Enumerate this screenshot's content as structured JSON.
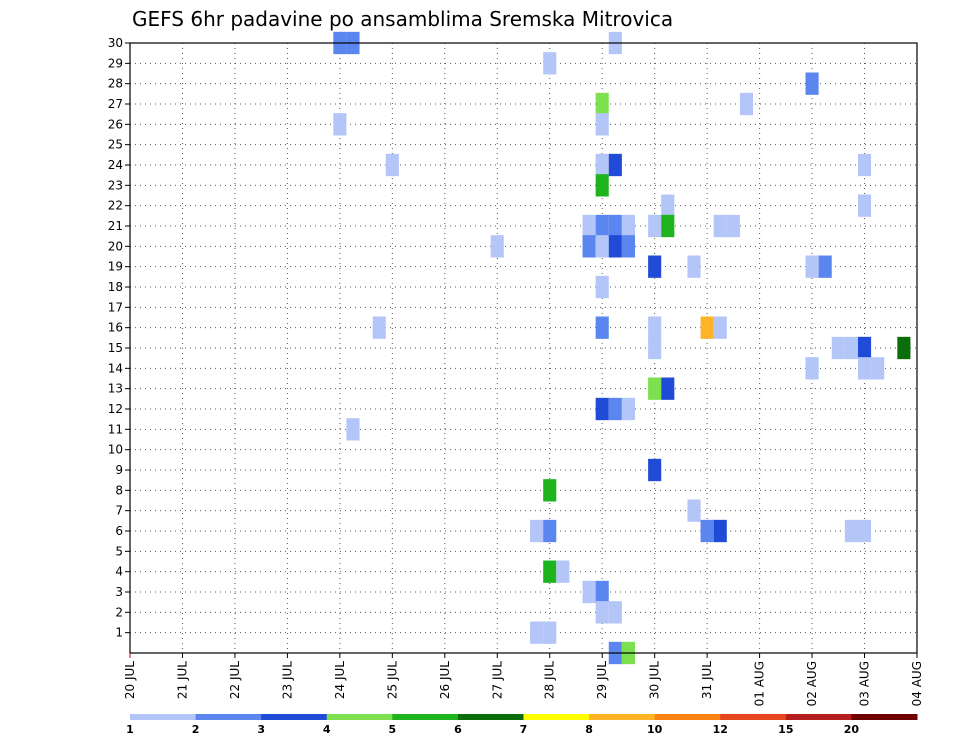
{
  "chart_data": {
    "type": "heatmap",
    "title": "GEFS 6hr padavine po ansamblima Sremska Mitrovica",
    "xlabel": "",
    "ylabel": "",
    "x_tick_labels": [
      "20 JUL",
      "21 JUL",
      "22 JUL",
      "23 JUL",
      "24 JUL",
      "25 JUL",
      "26 JUL",
      "27 JUL",
      "28 JUL",
      "29 JUL",
      "30 JUL",
      "31 JUL",
      "01 AUG",
      "02 AUG",
      "03 AUG",
      "04 AUG"
    ],
    "x_unit": "6-hour step (day index from 20 JUL)",
    "xlim": [
      0,
      15
    ],
    "y_tick_labels": [
      "1",
      "2",
      "3",
      "4",
      "5",
      "6",
      "7",
      "8",
      "9",
      "10",
      "11",
      "12",
      "13",
      "14",
      "15",
      "16",
      "17",
      "18",
      "19",
      "20",
      "21",
      "22",
      "23",
      "24",
      "25",
      "26",
      "27",
      "28",
      "29",
      "30"
    ],
    "ylim": [
      0,
      30
    ],
    "grid": true,
    "legend": {
      "placement": "bottom",
      "boundaries": [
        "1",
        "2",
        "3",
        "4",
        "5",
        "6",
        "7",
        "8",
        "10",
        "12",
        "15",
        "20"
      ],
      "colors": [
        "#b4c6f7",
        "#5b86f0",
        "#1f4bd6",
        "#7de04f",
        "#1eb41e",
        "#0a6e0a",
        "#ffff00",
        "#ffb428",
        "#ff8214",
        "#e6461e",
        "#b41e1e",
        "#6e0000"
      ]
    },
    "cells_columns": [
      "day",
      "member",
      "class"
    ],
    "cells": [
      [
        4.0,
        30,
        2
      ],
      [
        4.25,
        30,
        2
      ],
      [
        9.25,
        30,
        1
      ],
      [
        8.0,
        29,
        1
      ],
      [
        13.0,
        28,
        2
      ],
      [
        9.0,
        27,
        4
      ],
      [
        11.75,
        27,
        1
      ],
      [
        4.0,
        26,
        1
      ],
      [
        9.0,
        26,
        1
      ],
      [
        5.0,
        24,
        1
      ],
      [
        9.0,
        24,
        1
      ],
      [
        9.25,
        24,
        3
      ],
      [
        14.0,
        24,
        1
      ],
      [
        9.0,
        23,
        5
      ],
      [
        10.25,
        22,
        1
      ],
      [
        14.0,
        22,
        1
      ],
      [
        8.75,
        21,
        1
      ],
      [
        9.0,
        21,
        2
      ],
      [
        9.25,
        21,
        2
      ],
      [
        9.5,
        21,
        1
      ],
      [
        10.0,
        21,
        1
      ],
      [
        10.25,
        21,
        5
      ],
      [
        11.25,
        21,
        1
      ],
      [
        11.5,
        21,
        1
      ],
      [
        8.75,
        20,
        2
      ],
      [
        9.0,
        20,
        1
      ],
      [
        9.25,
        20,
        3
      ],
      [
        9.5,
        20,
        2
      ],
      [
        7.0,
        20,
        1
      ],
      [
        10.0,
        19,
        3
      ],
      [
        10.75,
        19,
        1
      ],
      [
        13.0,
        19,
        1
      ],
      [
        13.25,
        19,
        2
      ],
      [
        9.0,
        18,
        1
      ],
      [
        4.75,
        16,
        1
      ],
      [
        9.0,
        16,
        2
      ],
      [
        10.0,
        16,
        1
      ],
      [
        11.0,
        16,
        8
      ],
      [
        11.25,
        16,
        1
      ],
      [
        10.0,
        15,
        1
      ],
      [
        13.5,
        15,
        1
      ],
      [
        13.75,
        15,
        1
      ],
      [
        14.0,
        15,
        3
      ],
      [
        14.75,
        15,
        6
      ],
      [
        13.0,
        14,
        1
      ],
      [
        14.0,
        14,
        1
      ],
      [
        14.25,
        14,
        1
      ],
      [
        10.0,
        13,
        4
      ],
      [
        10.25,
        13,
        3
      ],
      [
        9.0,
        12,
        3
      ],
      [
        9.25,
        12,
        2
      ],
      [
        9.5,
        12,
        1
      ],
      [
        4.25,
        11,
        1
      ],
      [
        10.0,
        9,
        3
      ],
      [
        8.0,
        8,
        5
      ],
      [
        10.75,
        7,
        1
      ],
      [
        7.75,
        6,
        1
      ],
      [
        8.0,
        6,
        2
      ],
      [
        11.0,
        6,
        2
      ],
      [
        11.25,
        6,
        3
      ],
      [
        13.75,
        6,
        1
      ],
      [
        14.0,
        6,
        1
      ],
      [
        8.0,
        4,
        5
      ],
      [
        8.25,
        4,
        1
      ],
      [
        8.75,
        3,
        1
      ],
      [
        9.0,
        3,
        2
      ],
      [
        9.0,
        2,
        1
      ],
      [
        9.25,
        2,
        1
      ],
      [
        7.75,
        1,
        1
      ],
      [
        8.0,
        1,
        1
      ],
      [
        9.25,
        0,
        2
      ],
      [
        9.5,
        0,
        4
      ]
    ]
  }
}
